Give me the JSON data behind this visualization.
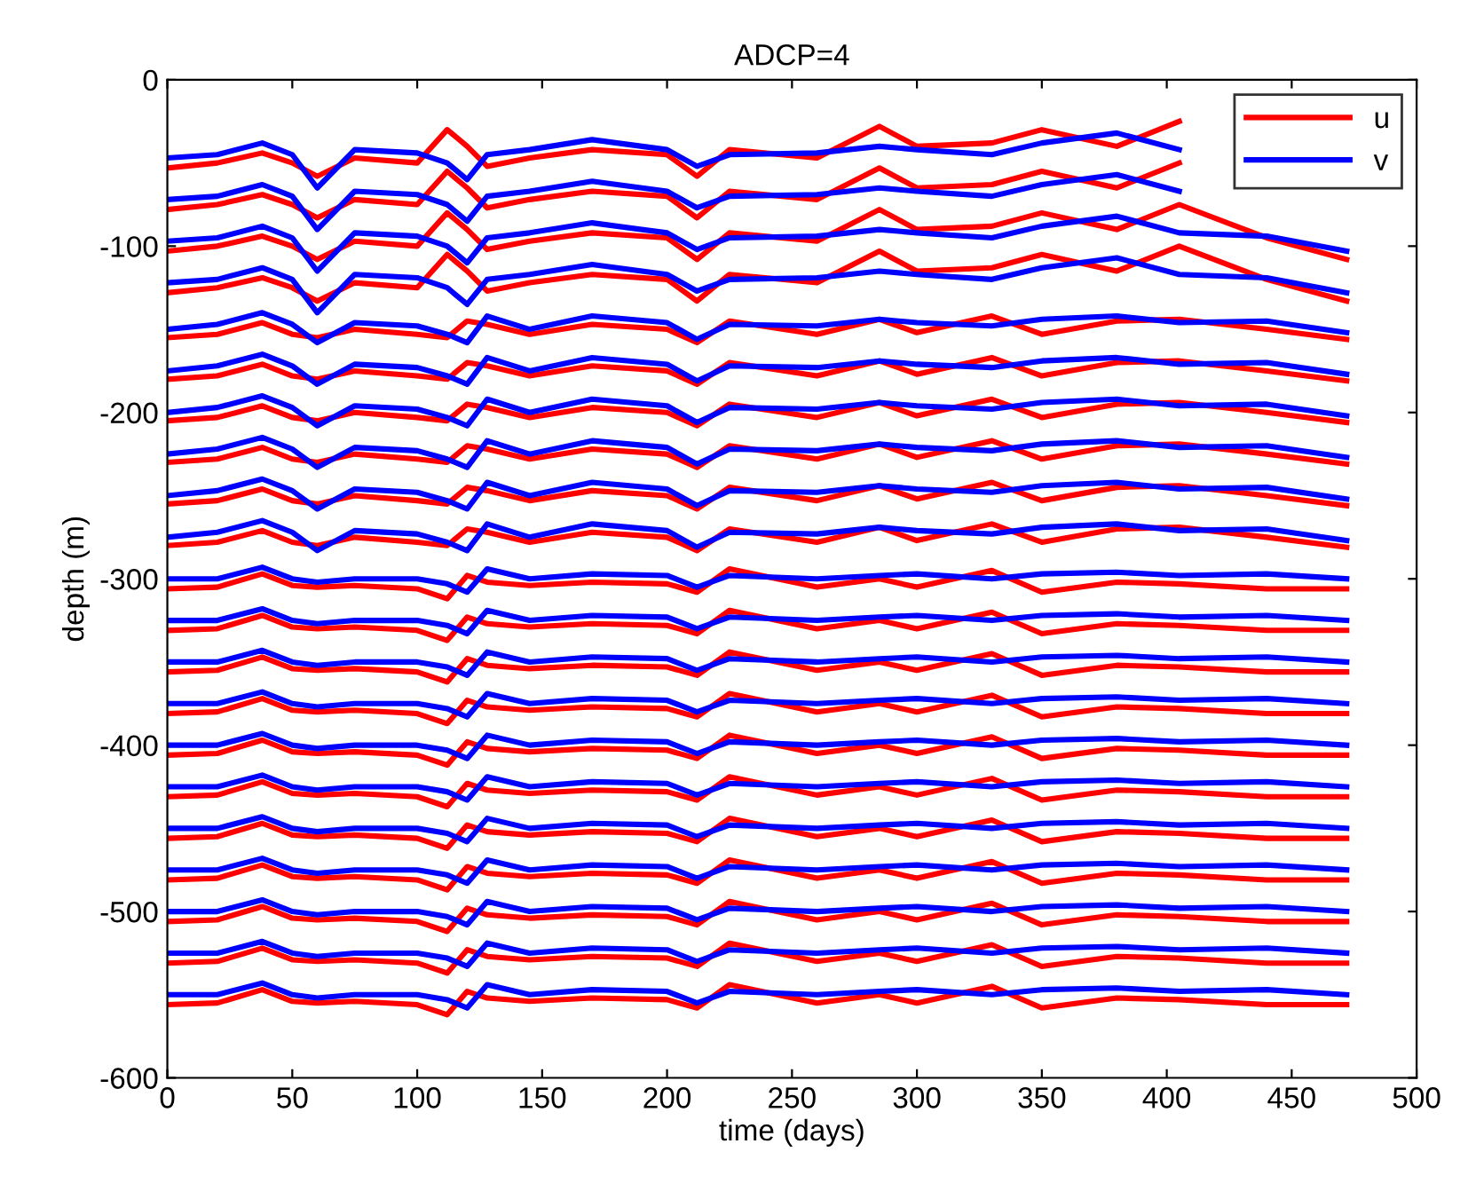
{
  "chart_data": {
    "type": "line",
    "title": "ADCP=4",
    "xlabel": "time (days)",
    "ylabel": "depth (m)",
    "xlim": [
      0,
      500
    ],
    "ylim": [
      -600,
      0
    ],
    "xticks": [
      0,
      50,
      100,
      150,
      200,
      250,
      300,
      350,
      400,
      450,
      500
    ],
    "yticks": [
      -600,
      -500,
      -400,
      -300,
      -200,
      -100,
      0
    ],
    "legend": "top right",
    "line_style": "solid",
    "marker": "none",
    "x": [
      0,
      20,
      38,
      50,
      60,
      75,
      100,
      112,
      120,
      128,
      145,
      170,
      200,
      212,
      225,
      260,
      285,
      300,
      330,
      350,
      380,
      405,
      440,
      472
    ],
    "series": [
      {
        "name": "u",
        "color": "#ff0000",
        "values": [
          -53,
          -50,
          -44,
          -50,
          -58,
          -47,
          -50,
          -30,
          -40,
          -52,
          -47,
          -42,
          -45,
          -58,
          -42,
          -47,
          -28,
          -40,
          -38,
          -30,
          -40,
          -25,
          null,
          null
        ]
      },
      {
        "name": "v",
        "color": "#0000ff",
        "values": [
          -47,
          -45,
          -38,
          -45,
          -65,
          -42,
          -44,
          -50,
          -60,
          -45,
          -42,
          -36,
          -42,
          -52,
          -45,
          -44,
          -40,
          -42,
          -45,
          -38,
          -32,
          -42,
          null,
          null
        ]
      },
      {
        "color": "#ff0000",
        "values": [
          -78,
          -75,
          -69,
          -75,
          -83,
          -72,
          -75,
          -55,
          -65,
          -77,
          -72,
          -67,
          -70,
          -83,
          -67,
          -72,
          -53,
          -65,
          -63,
          -55,
          -65,
          -50,
          null,
          null
        ]
      },
      {
        "color": "#0000ff",
        "values": [
          -72,
          -70,
          -63,
          -70,
          -90,
          -67,
          -69,
          -75,
          -85,
          -70,
          -67,
          -61,
          -67,
          -77,
          -70,
          -69,
          -65,
          -67,
          -70,
          -63,
          -57,
          -67,
          null,
          null
        ]
      },
      {
        "color": "#ff0000",
        "values": [
          -103,
          -100,
          -94,
          -100,
          -108,
          -97,
          -100,
          -80,
          -90,
          -102,
          -97,
          -92,
          -95,
          -108,
          -92,
          -97,
          -78,
          -90,
          -88,
          -80,
          -90,
          -75,
          -95,
          -108
        ]
      },
      {
        "color": "#0000ff",
        "values": [
          -97,
          -95,
          -88,
          -95,
          -115,
          -92,
          -94,
          -100,
          -110,
          -95,
          -92,
          -86,
          -92,
          -102,
          -95,
          -94,
          -90,
          -92,
          -95,
          -88,
          -82,
          -92,
          -94,
          -103
        ]
      },
      {
        "color": "#ff0000",
        "values": [
          -128,
          -125,
          -119,
          -125,
          -133,
          -122,
          -125,
          -105,
          -115,
          -127,
          -122,
          -117,
          -120,
          -133,
          -117,
          -122,
          -103,
          -115,
          -113,
          -105,
          -115,
          -100,
          -120,
          -133
        ]
      },
      {
        "color": "#0000ff",
        "values": [
          -122,
          -120,
          -113,
          -120,
          -140,
          -117,
          -119,
          -125,
          -135,
          -120,
          -117,
          -111,
          -117,
          -127,
          -120,
          -119,
          -115,
          -117,
          -120,
          -113,
          -107,
          -117,
          -119,
          -128
        ]
      },
      {
        "color": "#ff0000",
        "values": [
          -155,
          -153,
          -146,
          -153,
          -155,
          -150,
          -153,
          -155,
          -145,
          -147,
          -153,
          -147,
          -150,
          -158,
          -145,
          -153,
          -144,
          -152,
          -142,
          -153,
          -145,
          -144,
          -150,
          -156
        ]
      },
      {
        "color": "#0000ff",
        "values": [
          -150,
          -147,
          -140,
          -147,
          -158,
          -146,
          -148,
          -153,
          -158,
          -142,
          -150,
          -142,
          -146,
          -156,
          -147,
          -148,
          -144,
          -146,
          -148,
          -144,
          -142,
          -146,
          -145,
          -152
        ]
      },
      {
        "color": "#ff0000",
        "values": [
          -180,
          -178,
          -171,
          -178,
          -180,
          -175,
          -178,
          -180,
          -170,
          -172,
          -178,
          -172,
          -175,
          -183,
          -170,
          -178,
          -169,
          -177,
          -167,
          -178,
          -170,
          -169,
          -175,
          -181
        ]
      },
      {
        "color": "#0000ff",
        "values": [
          -175,
          -172,
          -165,
          -172,
          -183,
          -171,
          -173,
          -178,
          -183,
          -167,
          -175,
          -167,
          -171,
          -181,
          -172,
          -173,
          -169,
          -171,
          -173,
          -169,
          -167,
          -171,
          -170,
          -177
        ]
      },
      {
        "color": "#ff0000",
        "values": [
          -205,
          -203,
          -196,
          -203,
          -205,
          -200,
          -203,
          -205,
          -195,
          -197,
          -203,
          -197,
          -200,
          -208,
          -195,
          -203,
          -194,
          -202,
          -192,
          -203,
          -195,
          -194,
          -200,
          -206
        ]
      },
      {
        "color": "#0000ff",
        "values": [
          -200,
          -197,
          -190,
          -197,
          -208,
          -196,
          -198,
          -203,
          -208,
          -192,
          -200,
          -192,
          -196,
          -206,
          -197,
          -198,
          -194,
          -196,
          -198,
          -194,
          -192,
          -196,
          -195,
          -202
        ]
      },
      {
        "color": "#ff0000",
        "values": [
          -230,
          -228,
          -221,
          -228,
          -230,
          -225,
          -228,
          -230,
          -220,
          -222,
          -228,
          -222,
          -225,
          -233,
          -220,
          -228,
          -219,
          -227,
          -217,
          -228,
          -220,
          -219,
          -225,
          -231
        ]
      },
      {
        "color": "#0000ff",
        "values": [
          -225,
          -222,
          -215,
          -222,
          -233,
          -221,
          -223,
          -228,
          -233,
          -217,
          -225,
          -217,
          -221,
          -231,
          -222,
          -223,
          -219,
          -221,
          -223,
          -219,
          -217,
          -221,
          -220,
          -227
        ]
      },
      {
        "color": "#ff0000",
        "values": [
          -255,
          -253,
          -246,
          -253,
          -255,
          -250,
          -253,
          -255,
          -245,
          -247,
          -253,
          -247,
          -250,
          -258,
          -245,
          -253,
          -244,
          -252,
          -242,
          -253,
          -245,
          -244,
          -250,
          -256
        ]
      },
      {
        "color": "#0000ff",
        "values": [
          -250,
          -247,
          -240,
          -247,
          -258,
          -246,
          -248,
          -253,
          -258,
          -242,
          -250,
          -242,
          -246,
          -256,
          -247,
          -248,
          -244,
          -246,
          -248,
          -244,
          -242,
          -246,
          -245,
          -252
        ]
      },
      {
        "color": "#ff0000",
        "values": [
          -280,
          -278,
          -271,
          -278,
          -280,
          -275,
          -278,
          -280,
          -270,
          -272,
          -278,
          -272,
          -275,
          -283,
          -270,
          -278,
          -269,
          -277,
          -267,
          -278,
          -270,
          -269,
          -275,
          -281
        ]
      },
      {
        "color": "#0000ff",
        "values": [
          -275,
          -272,
          -265,
          -272,
          -283,
          -271,
          -273,
          -278,
          -283,
          -267,
          -275,
          -267,
          -271,
          -281,
          -272,
          -273,
          -269,
          -271,
          -273,
          -269,
          -267,
          -271,
          -270,
          -277
        ]
      },
      {
        "color": "#ff0000",
        "values": [
          -306,
          -305,
          -297,
          -304,
          -305,
          -304,
          -306,
          -312,
          -298,
          -302,
          -304,
          -302,
          -303,
          -308,
          -294,
          -305,
          -300,
          -305,
          -295,
          -308,
          -302,
          -303,
          -306,
          -306
        ]
      },
      {
        "color": "#0000ff",
        "values": [
          -300,
          -300,
          -293,
          -300,
          -302,
          -300,
          -300,
          -303,
          -308,
          -294,
          -300,
          -297,
          -298,
          -305,
          -298,
          -300,
          -298,
          -297,
          -300,
          -297,
          -296,
          -298,
          -297,
          -300
        ]
      },
      {
        "color": "#ff0000",
        "values": [
          -331,
          -330,
          -322,
          -329,
          -330,
          -329,
          -331,
          -337,
          -323,
          -327,
          -329,
          -327,
          -328,
          -333,
          -319,
          -330,
          -325,
          -330,
          -320,
          -333,
          -327,
          -328,
          -331,
          -331
        ]
      },
      {
        "color": "#0000ff",
        "values": [
          -325,
          -325,
          -318,
          -325,
          -327,
          -325,
          -325,
          -328,
          -333,
          -319,
          -325,
          -322,
          -323,
          -330,
          -323,
          -325,
          -323,
          -322,
          -325,
          -322,
          -321,
          -323,
          -322,
          -325
        ]
      },
      {
        "color": "#ff0000",
        "values": [
          -356,
          -355,
          -347,
          -354,
          -355,
          -354,
          -356,
          -362,
          -348,
          -352,
          -354,
          -352,
          -353,
          -358,
          -344,
          -355,
          -350,
          -355,
          -345,
          -358,
          -352,
          -353,
          -356,
          -356
        ]
      },
      {
        "color": "#0000ff",
        "values": [
          -350,
          -350,
          -343,
          -350,
          -352,
          -350,
          -350,
          -353,
          -358,
          -344,
          -350,
          -347,
          -348,
          -355,
          -348,
          -350,
          -348,
          -347,
          -350,
          -347,
          -346,
          -348,
          -347,
          -350
        ]
      },
      {
        "color": "#ff0000",
        "values": [
          -381,
          -380,
          -372,
          -379,
          -380,
          -379,
          -381,
          -387,
          -373,
          -377,
          -379,
          -377,
          -378,
          -383,
          -369,
          -380,
          -375,
          -380,
          -370,
          -383,
          -377,
          -378,
          -381,
          -381
        ]
      },
      {
        "color": "#0000ff",
        "values": [
          -375,
          -375,
          -368,
          -375,
          -377,
          -375,
          -375,
          -378,
          -383,
          -369,
          -375,
          -372,
          -373,
          -380,
          -373,
          -375,
          -373,
          -372,
          -375,
          -372,
          -371,
          -373,
          -372,
          -375
        ]
      },
      {
        "color": "#ff0000",
        "values": [
          -406,
          -405,
          -397,
          -404,
          -405,
          -404,
          -406,
          -412,
          -398,
          -402,
          -404,
          -402,
          -403,
          -408,
          -394,
          -405,
          -400,
          -405,
          -395,
          -408,
          -402,
          -403,
          -406,
          -406
        ]
      },
      {
        "color": "#0000ff",
        "values": [
          -400,
          -400,
          -393,
          -400,
          -402,
          -400,
          -400,
          -403,
          -408,
          -394,
          -400,
          -397,
          -398,
          -405,
          -398,
          -400,
          -398,
          -397,
          -400,
          -397,
          -396,
          -398,
          -397,
          -400
        ]
      },
      {
        "color": "#ff0000",
        "values": [
          -431,
          -430,
          -422,
          -429,
          -430,
          -429,
          -431,
          -437,
          -423,
          -427,
          -429,
          -427,
          -428,
          -433,
          -419,
          -430,
          -425,
          -430,
          -420,
          -433,
          -427,
          -428,
          -431,
          -431
        ]
      },
      {
        "color": "#0000ff",
        "values": [
          -425,
          -425,
          -418,
          -425,
          -427,
          -425,
          -425,
          -428,
          -433,
          -419,
          -425,
          -422,
          -423,
          -430,
          -423,
          -425,
          -423,
          -422,
          -425,
          -422,
          -421,
          -423,
          -422,
          -425
        ]
      },
      {
        "color": "#ff0000",
        "values": [
          -456,
          -455,
          -447,
          -454,
          -455,
          -454,
          -456,
          -462,
          -448,
          -452,
          -454,
          -452,
          -453,
          -458,
          -444,
          -455,
          -450,
          -455,
          -445,
          -458,
          -452,
          -453,
          -456,
          -456
        ]
      },
      {
        "color": "#0000ff",
        "values": [
          -450,
          -450,
          -443,
          -450,
          -452,
          -450,
          -450,
          -453,
          -458,
          -444,
          -450,
          -447,
          -448,
          -455,
          -448,
          -450,
          -448,
          -447,
          -450,
          -447,
          -446,
          -448,
          -447,
          -450
        ]
      },
      {
        "color": "#ff0000",
        "values": [
          -481,
          -480,
          -472,
          -479,
          -480,
          -479,
          -481,
          -487,
          -473,
          -477,
          -479,
          -477,
          -478,
          -483,
          -469,
          -480,
          -475,
          -480,
          -470,
          -483,
          -477,
          -478,
          -481,
          -481
        ]
      },
      {
        "color": "#0000ff",
        "values": [
          -475,
          -475,
          -468,
          -475,
          -477,
          -475,
          -475,
          -478,
          -483,
          -469,
          -475,
          -472,
          -473,
          -480,
          -473,
          -475,
          -473,
          -472,
          -475,
          -472,
          -471,
          -473,
          -472,
          -475
        ]
      },
      {
        "color": "#ff0000",
        "values": [
          -506,
          -505,
          -497,
          -504,
          -505,
          -504,
          -506,
          -512,
          -498,
          -502,
          -504,
          -502,
          -503,
          -508,
          -494,
          -505,
          -500,
          -505,
          -495,
          -508,
          -502,
          -503,
          -506,
          -506
        ]
      },
      {
        "color": "#0000ff",
        "values": [
          -500,
          -500,
          -493,
          -500,
          -502,
          -500,
          -500,
          -503,
          -508,
          -494,
          -500,
          -497,
          -498,
          -505,
          -498,
          -500,
          -498,
          -497,
          -500,
          -497,
          -496,
          -498,
          -497,
          -500
        ]
      },
      {
        "color": "#ff0000",
        "values": [
          -531,
          -530,
          -522,
          -529,
          -530,
          -529,
          -531,
          -537,
          -523,
          -527,
          -529,
          -527,
          -528,
          -533,
          -519,
          -530,
          -525,
          -530,
          -520,
          -533,
          -527,
          -528,
          -531,
          -531
        ]
      },
      {
        "color": "#0000ff",
        "values": [
          -525,
          -525,
          -518,
          -525,
          -527,
          -525,
          -525,
          -528,
          -533,
          -519,
          -525,
          -522,
          -523,
          -530,
          -523,
          -525,
          -523,
          -522,
          -525,
          -522,
          -521,
          -523,
          -522,
          -525
        ]
      },
      {
        "color": "#ff0000",
        "values": [
          -556,
          -555,
          -547,
          -554,
          -555,
          -554,
          -556,
          -562,
          -548,
          -552,
          -554,
          -552,
          -553,
          -558,
          -544,
          -555,
          -550,
          -555,
          -545,
          -558,
          -552,
          -553,
          -556,
          -556
        ]
      },
      {
        "color": "#0000ff",
        "values": [
          -550,
          -550,
          -543,
          -550,
          -552,
          -550,
          -550,
          -553,
          -558,
          -544,
          -550,
          -547,
          -548,
          -555,
          -548,
          -550,
          -548,
          -547,
          -550,
          -547,
          -546,
          -548,
          -547,
          -550
        ]
      }
    ]
  }
}
